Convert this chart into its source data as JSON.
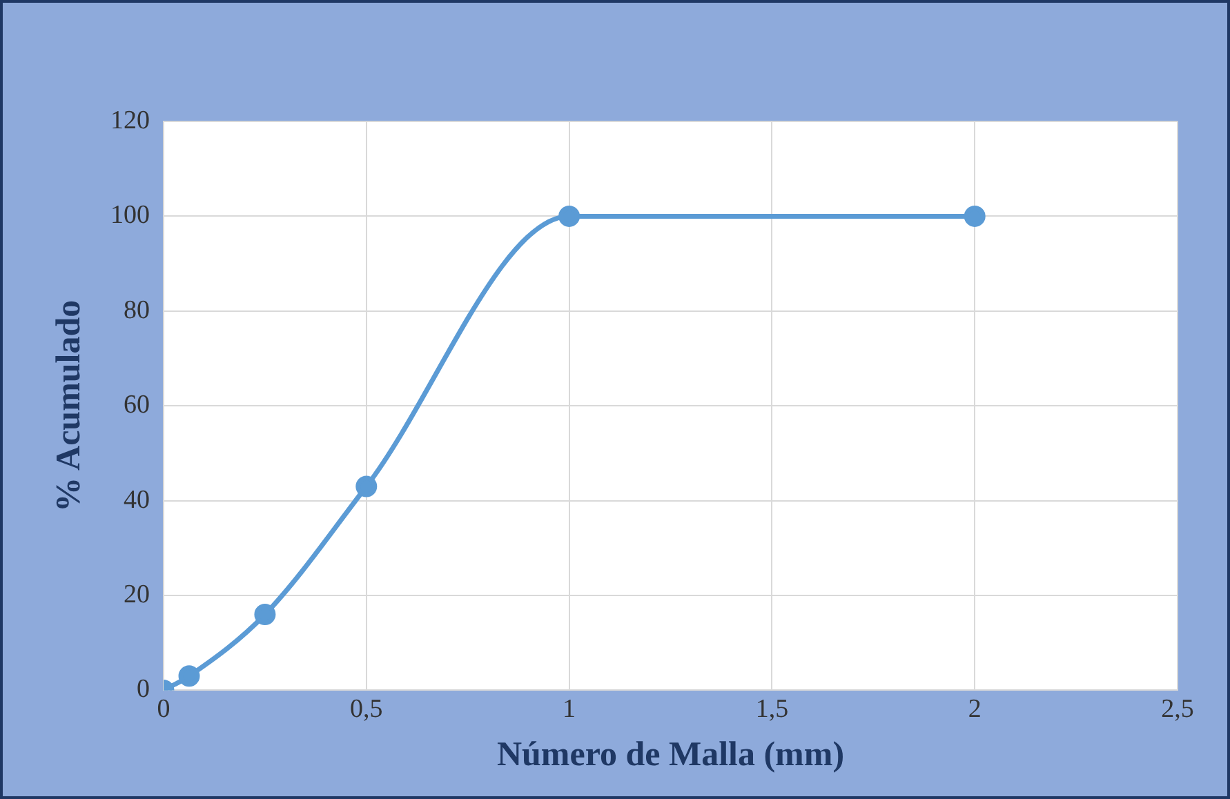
{
  "chart_data": {
    "type": "line",
    "xlabel": "Número de Malla (mm)",
    "ylabel": "% Acumulado",
    "x": [
      0,
      0.063,
      0.25,
      0.5,
      1,
      2
    ],
    "series": [
      {
        "color": "#5b9bd5",
        "values": [
          0,
          3,
          16,
          43,
          100,
          100
        ]
      }
    ],
    "xlim": [
      0,
      2.5
    ],
    "xticks": [
      0,
      {
        "value": 0.5,
        "label": "0,5"
      },
      1,
      {
        "value": 1.5,
        "label": "1,5"
      },
      2,
      {
        "value": 2.5,
        "label": "2,5"
      }
    ],
    "ylim": [
      0,
      120
    ],
    "yticks": [
      0,
      20,
      40,
      60,
      80,
      100,
      120
    ],
    "grid": true,
    "legend": false,
    "marker": "circle",
    "line_style": "solid"
  }
}
